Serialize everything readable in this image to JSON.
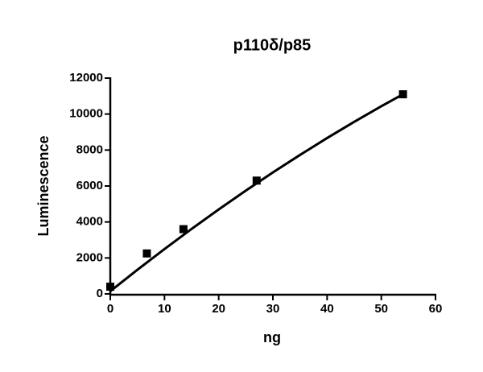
{
  "chart_data": {
    "type": "scatter",
    "title": "p110δ/p85",
    "x_label": "ng",
    "y_label": "Luminescence",
    "series": [
      {
        "mode": "markers",
        "color": "#000000",
        "x": [
          0,
          6.75,
          13.5,
          27,
          54
        ],
        "values": [
          400,
          2250,
          3600,
          6300,
          11100
        ]
      },
      {
        "mode": "line",
        "color": "#000000",
        "x": [
          0,
          5,
          10,
          15,
          20,
          25,
          30,
          35,
          40,
          45,
          50,
          54
        ],
        "values": [
          150,
          1340,
          2495,
          3613,
          4696,
          5742,
          6753,
          7727,
          8666,
          9568,
          10435,
          11100
        ]
      }
    ],
    "xlim": [
      0,
      60
    ],
    "xticks": [
      0,
      10,
      20,
      30,
      40,
      50,
      60
    ],
    "ylim": [
      0,
      12000
    ],
    "yticks": [
      0,
      2000,
      4000,
      6000,
      8000,
      10000,
      12000
    ],
    "grid": false
  }
}
